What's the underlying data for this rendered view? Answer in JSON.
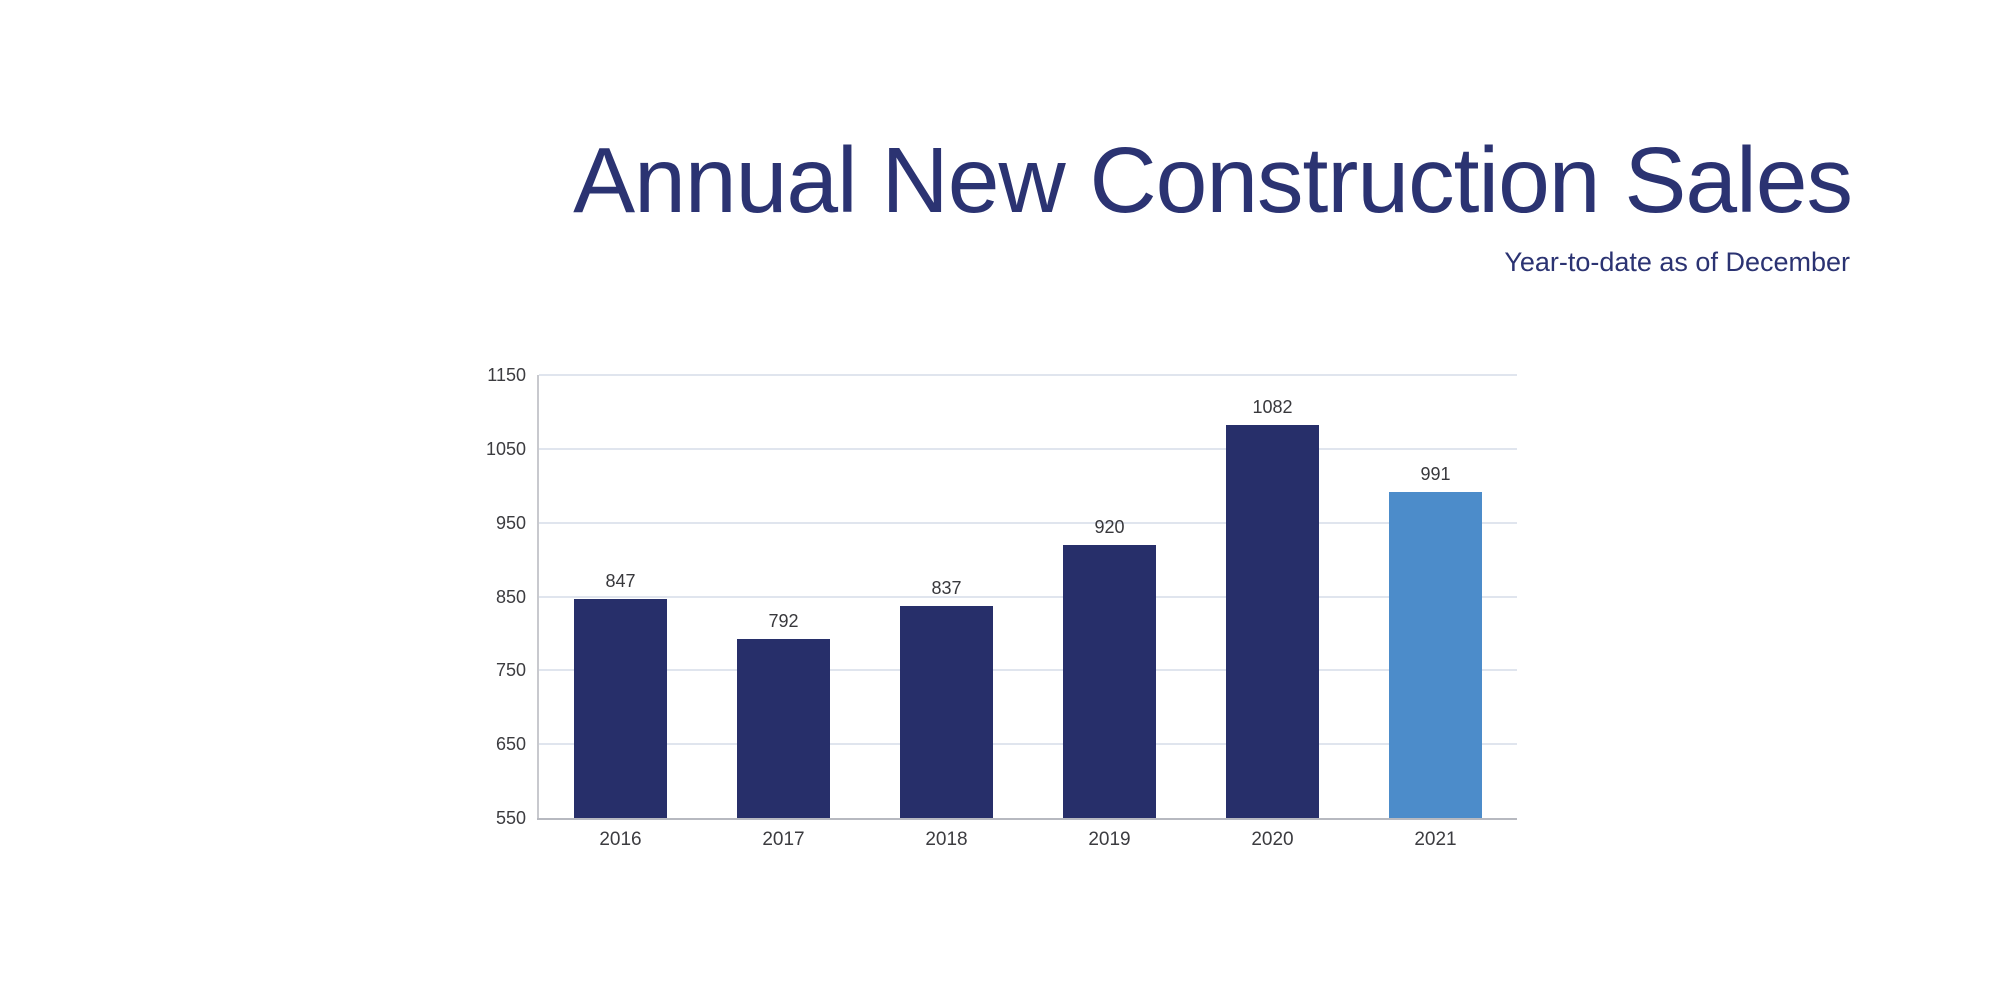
{
  "header": {
    "title": "Annual New Construction Sales",
    "subtitle": "Year-to-date as of December"
  },
  "chart_data": {
    "type": "bar",
    "title": "Annual New Construction Sales",
    "subtitle": "Year-to-date as of December",
    "categories": [
      "2016",
      "2017",
      "2018",
      "2019",
      "2020",
      "2021"
    ],
    "values": [
      847,
      792,
      837,
      920,
      1082,
      991
    ],
    "value_labels": [
      "847",
      "792",
      "837",
      "920",
      "1082",
      "991"
    ],
    "xlabel": "",
    "ylabel": "",
    "ylim": [
      550,
      1150
    ],
    "y_ticks": [
      1150,
      1050,
      950,
      850,
      750,
      650,
      550
    ],
    "grid": true,
    "legend": false,
    "highlight_index": 5
  },
  "colors": {
    "title_navy": "#2b3372",
    "bar_navy": "#272f6a",
    "bar_highlight_blue": "#4c8cca",
    "tick_label": "#3c3c40",
    "value_label": "#38383c",
    "gridline": "#e0e5ee",
    "axis_line_left": "#c8c9ce",
    "axis_line_bottom": "#b7b9c0",
    "background": "#ffffff"
  }
}
